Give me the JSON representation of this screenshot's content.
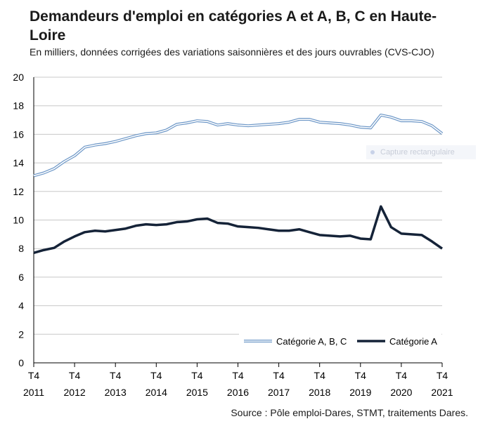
{
  "title": "Demandeurs d'emploi en catégories A et A, B, C en Haute-Loire",
  "subtitle": "En milliers, données corrigées des variations saisonnières et des jours ouvrables (CVS-CJO)",
  "source": "Source : Pôle emploi-Dares, STMT, traitements Dares.",
  "watermark": "Capture rectangulaire",
  "chart_data": {
    "type": "line",
    "ylim": [
      0,
      20
    ],
    "y_ticks": [
      "0",
      "2",
      "4",
      "6",
      "8",
      "10",
      "12",
      "14",
      "16",
      "18",
      "20"
    ],
    "x_ticks": [
      {
        "quarter": "T4",
        "year": "2011"
      },
      {
        "quarter": "T4",
        "year": "2012"
      },
      {
        "quarter": "T4",
        "year": "2013"
      },
      {
        "quarter": "T4",
        "year": "2014"
      },
      {
        "quarter": "T4",
        "year": "2015"
      },
      {
        "quarter": "T4",
        "year": "2016"
      },
      {
        "quarter": "T4",
        "year": "2017"
      },
      {
        "quarter": "T4",
        "year": "2018"
      },
      {
        "quarter": "T4",
        "year": "2019"
      },
      {
        "quarter": "T4",
        "year": "2020"
      },
      {
        "quarter": "T4",
        "year": "2021"
      }
    ],
    "legend_position": "bottom-right",
    "grid": true,
    "series": [
      {
        "name": "Catégorie A, B, C",
        "color": "#6d97c7",
        "style": "double",
        "values": [
          13.1,
          13.3,
          13.6,
          14.1,
          14.5,
          15.1,
          15.25,
          15.35,
          15.5,
          15.7,
          15.9,
          16.05,
          16.1,
          16.3,
          16.7,
          16.8,
          16.95,
          16.9,
          16.65,
          16.75,
          16.65,
          16.6,
          16.65,
          16.7,
          16.75,
          16.85,
          17.05,
          17.05,
          16.85,
          16.8,
          16.75,
          16.65,
          16.5,
          16.45,
          17.35,
          17.2,
          16.95,
          16.95,
          16.9,
          16.6,
          16.05
        ]
      },
      {
        "name": "Catégorie A",
        "color": "#152338",
        "style": "solid",
        "values": [
          7.7,
          7.9,
          8.05,
          8.5,
          8.85,
          9.15,
          9.25,
          9.2,
          9.3,
          9.4,
          9.6,
          9.7,
          9.65,
          9.7,
          9.85,
          9.9,
          10.05,
          10.1,
          9.8,
          9.75,
          9.55,
          9.5,
          9.45,
          9.35,
          9.25,
          9.25,
          9.35,
          9.15,
          8.95,
          8.9,
          8.85,
          8.9,
          8.7,
          8.65,
          10.95,
          9.5,
          9.05,
          9.0,
          8.95,
          8.5,
          8.0
        ]
      }
    ]
  }
}
